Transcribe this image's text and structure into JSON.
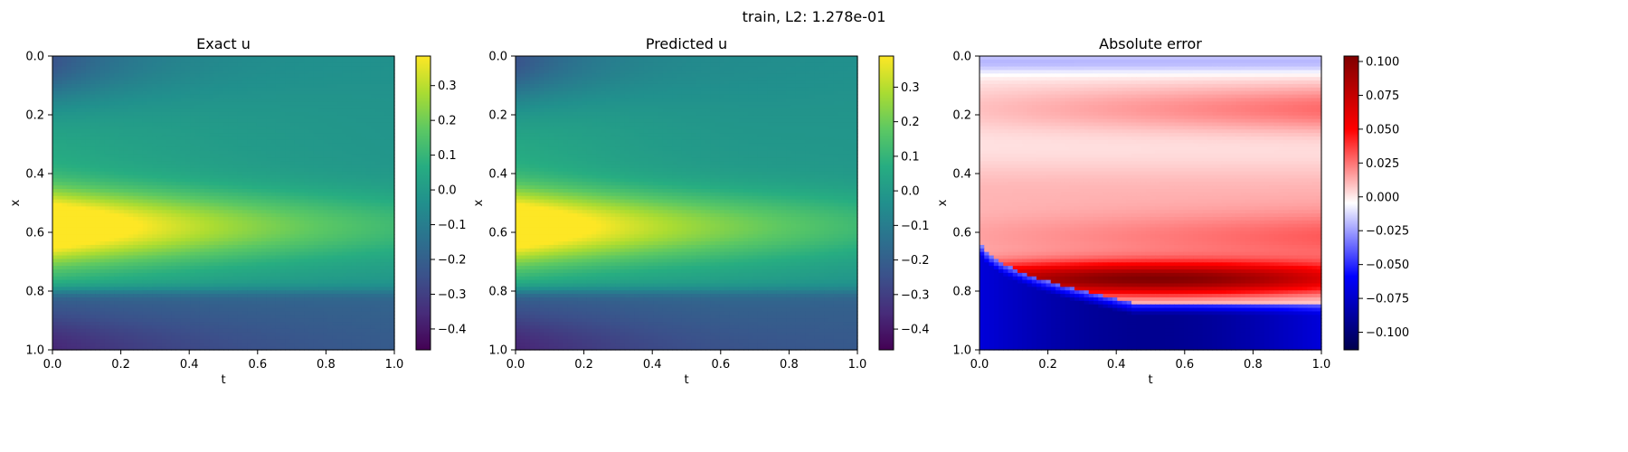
{
  "suptitle": "train, L2: 1.278e-01",
  "chart_data": [
    {
      "type": "heatmap",
      "title": "Exact u",
      "xlabel": "t",
      "ylabel": "x",
      "xlim": [
        0.0,
        1.0
      ],
      "ylim": [
        1.0,
        0.0
      ],
      "x_ticks": [
        "0.0",
        "0.2",
        "0.4",
        "0.6",
        "0.8",
        "1.0"
      ],
      "y_ticks": [
        "0.0",
        "0.2",
        "0.4",
        "0.6",
        "0.8",
        "1.0"
      ],
      "colormap": "viridis",
      "vmin": -0.46,
      "vmax": 0.385,
      "colorbar_ticks": [
        "−0.4",
        "−0.3",
        "−0.2",
        "−0.1",
        "0.0",
        "0.1",
        "0.2",
        "0.3"
      ],
      "grid": false
    },
    {
      "type": "heatmap",
      "title": "Predicted u",
      "xlabel": "t",
      "ylabel": "x",
      "xlim": [
        0.0,
        1.0
      ],
      "ylim": [
        1.0,
        0.0
      ],
      "x_ticks": [
        "0.0",
        "0.2",
        "0.4",
        "0.6",
        "0.8",
        "1.0"
      ],
      "y_ticks": [
        "0.0",
        "0.2",
        "0.4",
        "0.6",
        "0.8",
        "1.0"
      ],
      "colormap": "viridis",
      "vmin": -0.46,
      "vmax": 0.39,
      "colorbar_ticks": [
        "−0.4",
        "−0.3",
        "−0.2",
        "−0.1",
        "0.0",
        "0.1",
        "0.2",
        "0.3"
      ],
      "grid": false
    },
    {
      "type": "heatmap",
      "title": "Absolute error",
      "xlabel": "t",
      "ylabel": "x",
      "xlim": [
        0.0,
        1.0
      ],
      "ylim": [
        1.0,
        0.0
      ],
      "x_ticks": [
        "0.0",
        "0.2",
        "0.4",
        "0.6",
        "0.8",
        "1.0"
      ],
      "y_ticks": [
        "0.0",
        "0.2",
        "0.4",
        "0.6",
        "0.8",
        "1.0"
      ],
      "colormap": "seismic",
      "vmin": -0.113,
      "vmax": 0.104,
      "colorbar_ticks": [
        "−0.100",
        "−0.075",
        "−0.050",
        "−0.025",
        "0.000",
        "0.025",
        "0.050",
        "0.075",
        "0.100"
      ],
      "grid": false
    }
  ]
}
